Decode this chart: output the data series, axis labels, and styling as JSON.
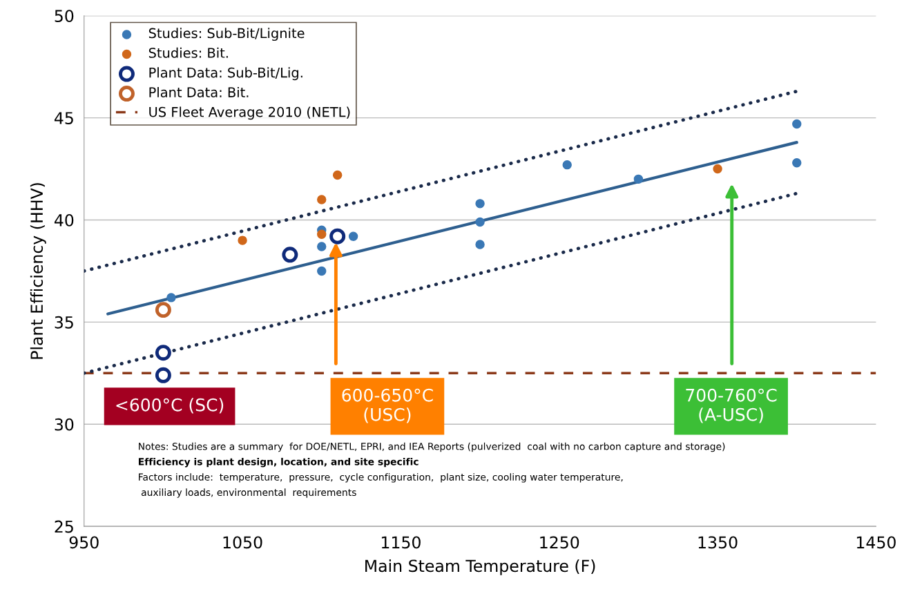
{
  "chart_data": {
    "type": "scatter",
    "xlabel": "Main Steam Temperature (F)",
    "ylabel": "Plant Efficiency (HHV)",
    "xlim": [
      950,
      1450
    ],
    "xticks": [
      950,
      1050,
      1150,
      1250,
      1350,
      1450
    ],
    "ylim": [
      25,
      50
    ],
    "yticks": [
      25,
      30,
      35,
      40,
      45,
      50
    ],
    "grid": "y",
    "legend": "top left",
    "marker": "circle",
    "series": [
      {
        "name": "Studies: Sub-Bit/Lignite",
        "color": "#3a78b5",
        "x": [
          1005,
          1100,
          1100,
          1100,
          1120,
          1200,
          1200,
          1200,
          1255,
          1300,
          1400,
          1400
        ],
        "values": [
          36.2,
          39.5,
          38.7,
          37.5,
          39.2,
          40.8,
          39.9,
          38.8,
          42.7,
          42.0,
          44.7,
          42.8
        ]
      },
      {
        "name": "Studies: Bit.",
        "color": "#d0671a",
        "x": [
          1050,
          1100,
          1100,
          1110,
          1350
        ],
        "values": [
          39.0,
          41.0,
          39.3,
          42.2,
          42.5
        ]
      },
      {
        "name": "Plant Data: Sub-Bit/Lig.",
        "color": "#0f2a7a",
        "x": [
          1000,
          1000,
          1080,
          1110
        ],
        "values": [
          33.5,
          32.4,
          38.3,
          39.2
        ]
      },
      {
        "name": "Plant Data: Bit.",
        "color": "#c0622a",
        "x": [
          1000
        ],
        "values": [
          35.6
        ]
      },
      {
        "type": "line",
        "color": "#2e5f8f",
        "line_style": "solid",
        "marker": "none",
        "x": [
          965,
          1400
        ],
        "values": [
          35.4,
          43.8
        ]
      },
      {
        "type": "line",
        "color": "#1a2a4a",
        "line_style": "dotted",
        "marker": "none",
        "x": [
          950,
          1400
        ],
        "values": [
          37.5,
          46.3
        ]
      },
      {
        "type": "line",
        "color": "#1a2a4a",
        "line_style": "dotted",
        "marker": "none",
        "x": [
          950,
          1400
        ],
        "values": [
          32.5,
          41.3
        ]
      }
    ],
    "ref_lines": [
      {
        "axis": "y",
        "value": 32.5,
        "label": "US Fleet Average 2010 (NETL)",
        "color": "#8b3a1a",
        "line_style": "dashed"
      }
    ],
    "annotations": [
      "<600°C (SC)",
      "600-650°C\n(USC)",
      "700-760°C\n(A-USC)",
      "Notes: Studies are a summary  for DOE/NETL, EPRI, and IEA Reports (pulverized  coal with no carbon capture and storage)",
      "Efficiency is plant design, location, and site specific",
      "Factors include:  temperature,  pressure,  cycle configuration,  plant size, cooling water temperature,",
      " auxiliary loads, environmental  requirements"
    ]
  }
}
